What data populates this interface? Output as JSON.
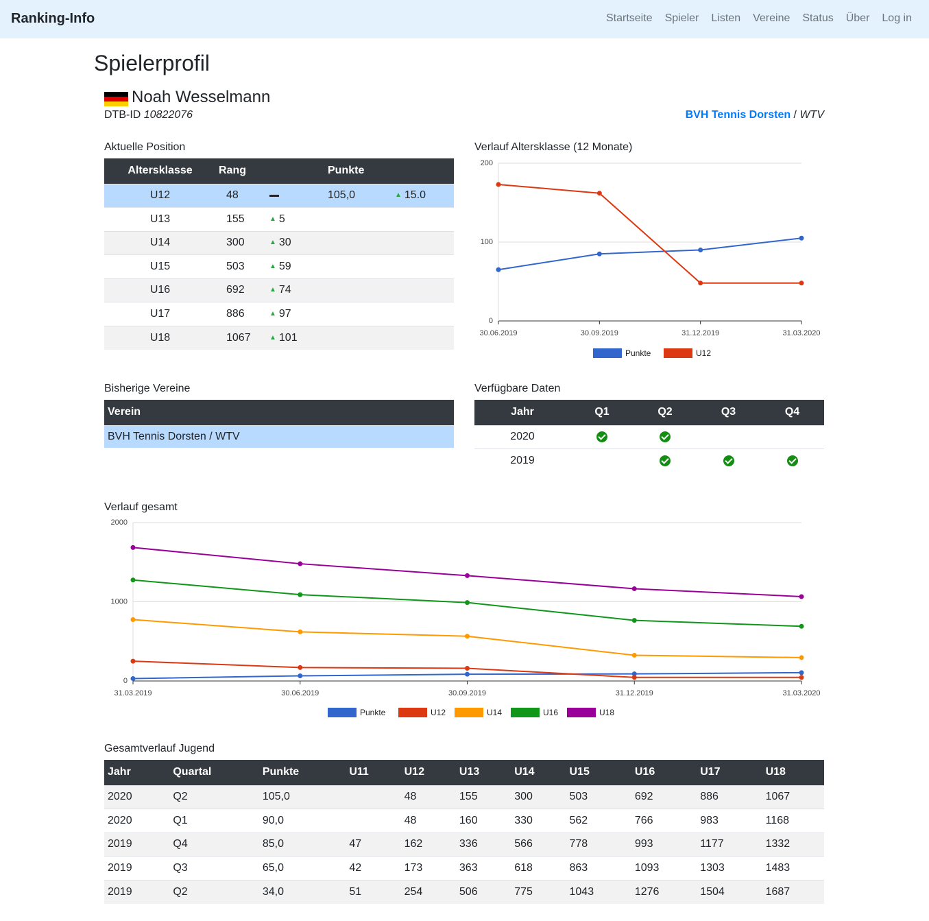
{
  "nav": {
    "brand": "Ranking-Info",
    "links": [
      "Startseite",
      "Spieler",
      "Listen",
      "Vereine",
      "Status",
      "Über",
      "Log in"
    ]
  },
  "page": {
    "title": "Spielerprofil",
    "player_name": "Noah Wesselmann",
    "dtb_label": "DTB-ID",
    "dtb_id": "10822076",
    "club": "BVH Tennis Dorsten",
    "separator": " / ",
    "federation": "WTV"
  },
  "colors": {
    "navbar": "#e3f2fd",
    "header": "#343a40",
    "highlight": "#b8daff",
    "link": "#007bff",
    "up": "#28a745"
  },
  "current_position": {
    "title": "Aktuelle Position",
    "headers": [
      "Altersklasse",
      "Rang",
      "Punkte"
    ],
    "rows": [
      {
        "klasse": "U12",
        "rang": "48",
        "rang_change": "",
        "punkte": "105,0",
        "punkte_change": "15.0"
      },
      {
        "klasse": "U13",
        "rang": "155",
        "rang_change": "5",
        "punkte": "",
        "punkte_change": ""
      },
      {
        "klasse": "U14",
        "rang": "300",
        "rang_change": "30",
        "punkte": "",
        "punkte_change": ""
      },
      {
        "klasse": "U15",
        "rang": "503",
        "rang_change": "59",
        "punkte": "",
        "punkte_change": ""
      },
      {
        "klasse": "U16",
        "rang": "692",
        "rang_change": "74",
        "punkte": "",
        "punkte_change": ""
      },
      {
        "klasse": "U17",
        "rang": "886",
        "rang_change": "97",
        "punkte": "",
        "punkte_change": ""
      },
      {
        "klasse": "U18",
        "rang": "1067",
        "rang_change": "101",
        "punkte": "",
        "punkte_change": ""
      }
    ]
  },
  "past_clubs": {
    "title": "Bisherige Vereine",
    "header": "Verein",
    "rows": [
      "BVH Tennis Dorsten / WTV"
    ]
  },
  "available_data": {
    "title": "Verfügbare Daten",
    "headers": [
      "Jahr",
      "Q1",
      "Q2",
      "Q3",
      "Q4"
    ],
    "rows": [
      {
        "jahr": "2020",
        "q": [
          true,
          true,
          false,
          false
        ]
      },
      {
        "jahr": "2019",
        "q": [
          false,
          true,
          true,
          true
        ]
      }
    ]
  },
  "history": {
    "title": "Gesamtverlauf Jugend",
    "headers": [
      "Jahr",
      "Quartal",
      "Punkte",
      "U11",
      "U12",
      "U13",
      "U14",
      "U15",
      "U16",
      "U17",
      "U18"
    ],
    "rows": [
      [
        "2020",
        "Q2",
        "105,0",
        "",
        "48",
        "155",
        "300",
        "503",
        "692",
        "886",
        "1067"
      ],
      [
        "2020",
        "Q1",
        "90,0",
        "",
        "48",
        "160",
        "330",
        "562",
        "766",
        "983",
        "1168"
      ],
      [
        "2019",
        "Q4",
        "85,0",
        "47",
        "162",
        "336",
        "566",
        "778",
        "993",
        "1177",
        "1332"
      ],
      [
        "2019",
        "Q3",
        "65,0",
        "42",
        "173",
        "363",
        "618",
        "863",
        "1093",
        "1303",
        "1483"
      ],
      [
        "2019",
        "Q2",
        "34,0",
        "51",
        "254",
        "506",
        "775",
        "1043",
        "1276",
        "1504",
        "1687"
      ]
    ]
  },
  "chart_data": [
    {
      "type": "line",
      "title": "Verlauf Altersklasse (12 Monate)",
      "x": [
        "30.06.2019",
        "30.09.2019",
        "31.12.2019",
        "31.03.2020"
      ],
      "ylim": [
        0,
        200
      ],
      "yticks": [
        "0",
        "100",
        "200"
      ],
      "grid": true,
      "legend": "bottom",
      "series": [
        {
          "name": "Punkte",
          "color": "#3366cc",
          "values": [
            65,
            85,
            90,
            105
          ]
        },
        {
          "name": "U12",
          "color": "#dc3912",
          "values": [
            173,
            162,
            48,
            48
          ]
        }
      ]
    },
    {
      "type": "line",
      "title": "Verlauf gesamt",
      "x": [
        "31.03.2019",
        "30.06.2019",
        "30.09.2019",
        "31.12.2019",
        "31.03.2020"
      ],
      "ylim": [
        0,
        2000
      ],
      "yticks": [
        "0",
        "1000",
        "2000"
      ],
      "grid": true,
      "legend": "bottom",
      "series": [
        {
          "name": "Punkte",
          "color": "#3366cc",
          "values": [
            30,
            65,
            85,
            90,
            105
          ]
        },
        {
          "name": "U12",
          "color": "#dc3912",
          "values": [
            250,
            170,
            160,
            45,
            45
          ]
        },
        {
          "name": "U14",
          "color": "#ff9900",
          "values": [
            775,
            620,
            565,
            325,
            295
          ]
        },
        {
          "name": "U16",
          "color": "#109618",
          "values": [
            1275,
            1090,
            990,
            765,
            690
          ]
        },
        {
          "name": "U18",
          "color": "#990099",
          "values": [
            1685,
            1480,
            1330,
            1165,
            1065
          ]
        }
      ]
    }
  ]
}
